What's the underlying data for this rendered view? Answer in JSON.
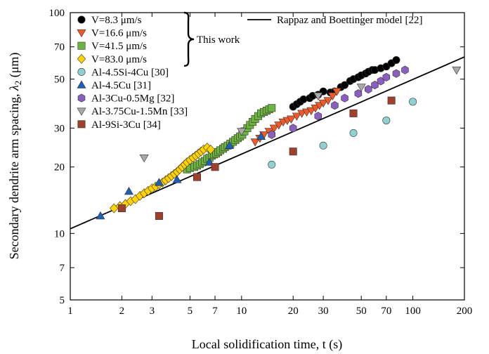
{
  "chart_data": {
    "type": "scatter",
    "xscale": "log",
    "yscale": "log",
    "xlabel": "Local solidification time, t (s)",
    "ylabel_main": "Secondary dendrite arm spacing, ",
    "ylabel_sym": "λ",
    "ylabel_sub": "2",
    "ylabel_unit": " (μm)",
    "xlim": [
      1,
      200
    ],
    "ylim": [
      5,
      100
    ],
    "xticks": [
      1,
      2,
      3,
      5,
      7,
      10,
      20,
      30,
      50,
      70,
      100,
      200
    ],
    "yticks": [
      5,
      7,
      10,
      20,
      30,
      50,
      70,
      100
    ],
    "grid": false,
    "legend_position": "top-left",
    "this_work_label": "This work",
    "series": [
      {
        "name": "V=8.3 μm/s",
        "marker": "circle",
        "color": "#000000",
        "x": [
          20,
          21,
          22,
          23,
          25,
          26,
          28,
          30,
          33,
          35,
          38,
          40,
          43,
          45,
          48,
          50,
          53,
          55,
          58,
          60,
          65,
          70,
          75,
          80
        ],
        "y": [
          37.5,
          38.5,
          39.5,
          40.5,
          41,
          42,
          42.5,
          44,
          43.5,
          44,
          46,
          47,
          49,
          50,
          51,
          52,
          53,
          54,
          55,
          55,
          56,
          57,
          59,
          61
        ]
      },
      {
        "name": "V=16.6 μm/s",
        "marker": "triangle-down",
        "color": "#f05a28",
        "x": [
          12,
          12.8,
          13.5,
          14.5,
          15.5,
          16.5,
          17.5,
          18.5,
          19.5,
          21,
          22.5,
          24,
          25.5,
          27,
          28.5,
          30,
          32,
          34,
          36
        ],
        "y": [
          26,
          27,
          28,
          29,
          30,
          31,
          32,
          32.5,
          33,
          34,
          35,
          35.5,
          36,
          37,
          38,
          39,
          40,
          42,
          44
        ]
      },
      {
        "name": "V=41.5 μm/s",
        "marker": "square",
        "color": "#6db33f",
        "x": [
          4.8,
          5.0,
          5.3,
          5.5,
          5.7,
          5.9,
          6.1,
          6.3,
          6.5,
          6.7,
          6.9,
          7.1,
          7.3,
          7.5,
          7.8,
          8.0,
          8.3,
          8.6,
          8.9,
          9.2,
          9.5,
          9.8,
          10.1,
          10.4,
          10.8,
          11.2,
          11.6,
          12.0,
          12.5,
          13.0,
          13.5,
          14.0,
          14.5,
          15.0
        ],
        "y": [
          19.5,
          19.8,
          20,
          20.3,
          20.6,
          21,
          21.3,
          21.8,
          22,
          22.5,
          22.8,
          23,
          23.4,
          23.8,
          24.2,
          24.6,
          25,
          25.5,
          26,
          26.5,
          27,
          27.5,
          28,
          29,
          30,
          31,
          32,
          33,
          34,
          35,
          35.5,
          36,
          36.5,
          37
        ]
      },
      {
        "name": "V=83.0 μm/s",
        "marker": "diamond",
        "color": "#ffd200",
        "x": [
          1.8,
          1.95,
          2.1,
          2.25,
          2.4,
          2.55,
          2.7,
          2.85,
          3.0,
          3.15,
          3.3,
          3.45,
          3.6,
          3.75,
          3.9,
          4.05,
          4.2,
          4.35,
          4.5,
          4.65,
          4.8,
          5.0,
          5.2,
          5.4,
          5.6,
          5.8,
          6.0,
          6.3,
          6.6
        ],
        "y": [
          13,
          13.3,
          13.6,
          14,
          14.3,
          14.8,
          15.2,
          15.6,
          16,
          16.3,
          16.7,
          17,
          17.4,
          17.8,
          18.2,
          18.6,
          19,
          19.5,
          20,
          20.5,
          21,
          21.5,
          22,
          22.5,
          23,
          23.5,
          24,
          24.5,
          24
        ]
      },
      {
        "name": "Al-4.5Si-4Cu [30]",
        "marker": "circle",
        "color": "#8fd0d4",
        "x": [
          15,
          30,
          45,
          70,
          100
        ],
        "y": [
          20.5,
          25,
          28.5,
          32.5,
          39.5
        ]
      },
      {
        "name": "Al-4.5Cu [31]",
        "marker": "triangle-up",
        "color": "#1f5fb4",
        "x": [
          1.5,
          2.2,
          3.3,
          4.2,
          6.5,
          8.5,
          13
        ],
        "y": [
          12,
          15.5,
          17,
          17.5,
          21,
          25,
          27.5
        ]
      },
      {
        "name": "Al-3Cu-0.5Mg [32]",
        "marker": "hexagon",
        "color": "#8a5fc0",
        "x": [
          15,
          20,
          28,
          35,
          40,
          48,
          55,
          60,
          65,
          70,
          80,
          90
        ],
        "y": [
          28,
          30,
          34,
          38,
          41,
          43,
          45,
          47,
          49,
          51,
          53,
          55
        ]
      },
      {
        "name": "Al-3.75Cu-1.5Mn [33]",
        "marker": "triangle-down",
        "color": "#a9a9a9",
        "x": [
          2.7,
          10,
          28,
          50,
          180
        ],
        "y": [
          22,
          29,
          42,
          46,
          55
        ]
      },
      {
        "name": "Al-9Si-3Cu [34]",
        "marker": "square",
        "color": "#a0402c",
        "x": [
          2,
          3.3,
          5.5,
          7,
          20,
          45,
          75
        ],
        "y": [
          13,
          12,
          18,
          20,
          23.5,
          35,
          40
        ]
      }
    ],
    "lines": [
      {
        "name": "Rappaz and Boettinger model [22]",
        "color": "#000000",
        "x": [
          1,
          200
        ],
        "y": [
          10.5,
          63
        ]
      }
    ]
  }
}
